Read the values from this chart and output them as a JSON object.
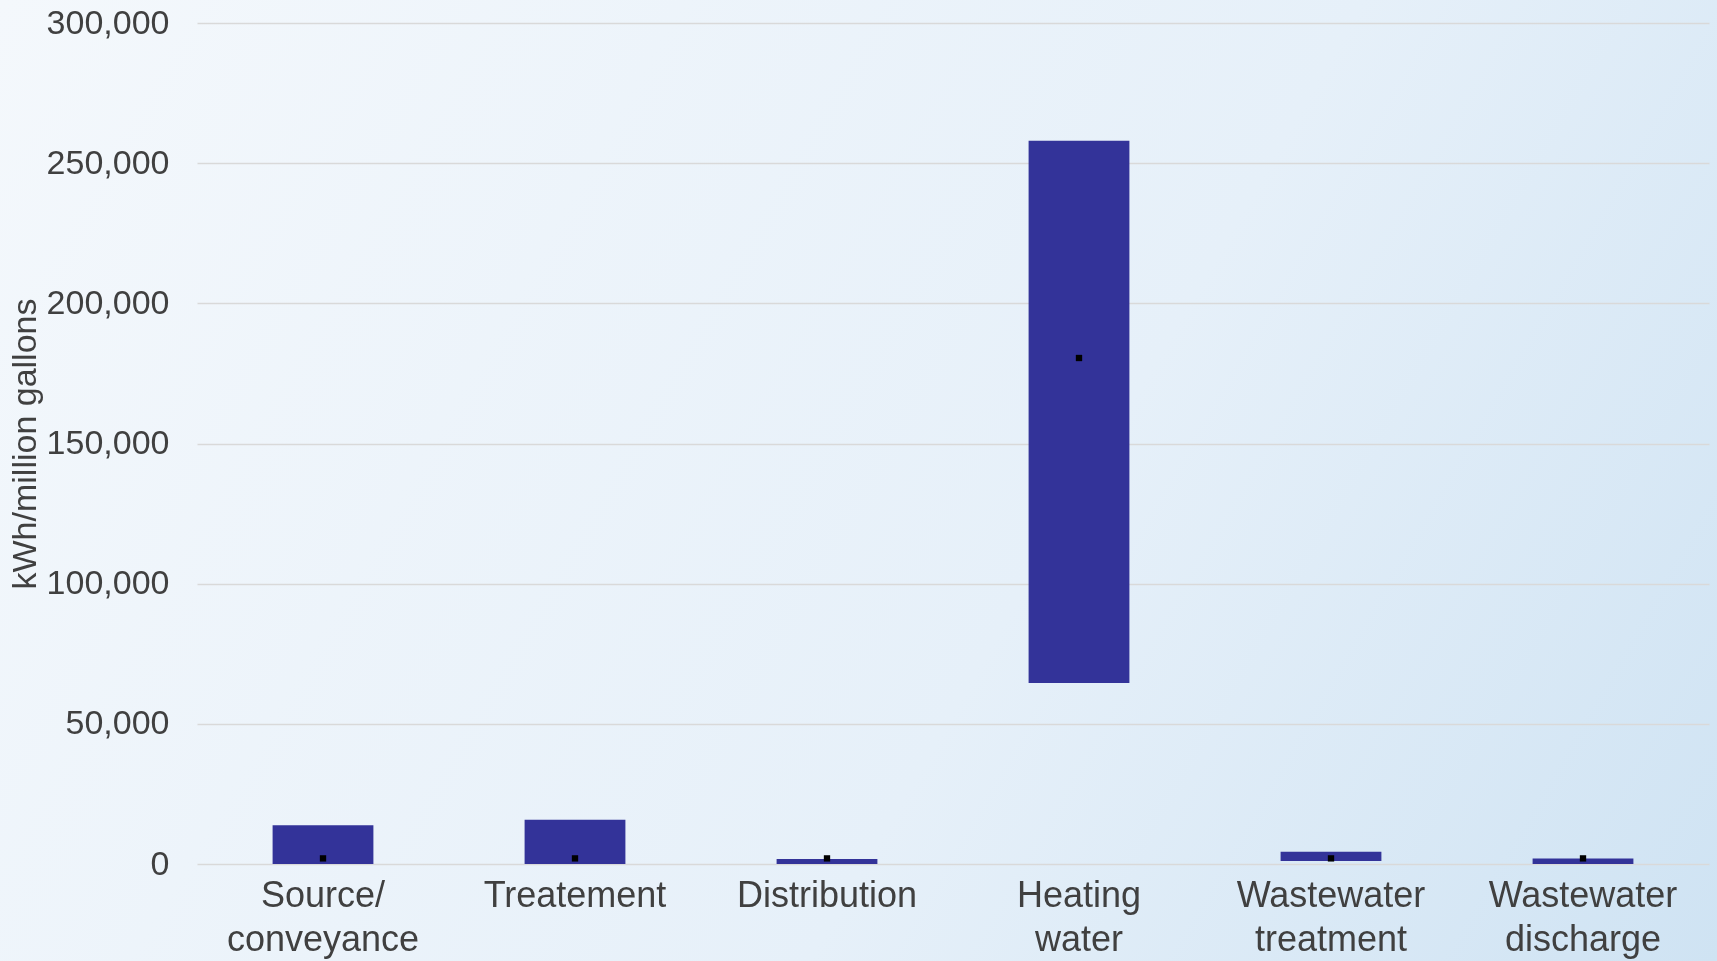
{
  "chart_data": {
    "type": "bar",
    "ylabel": "kWh/million gallons",
    "categories": [
      "Source/ conveyance",
      "Treatement",
      "Distribution",
      "Heating water",
      "Wastewater treatment",
      "Wastewater discharge"
    ],
    "series": [
      {
        "color": "#333399",
        "base": [
          0,
          0,
          0,
          64600,
          1100,
          0
        ],
        "values": [
          13800,
          15800,
          1800,
          193400,
          3300,
          2000
        ]
      },
      {
        "type": "scatter",
        "color": "#000000",
        "x": [
          "Source/ conveyance",
          "Treatement",
          "Distribution",
          "Heating water",
          "Wastewater treatment",
          "Wastewater discharge"
        ],
        "values": [
          2000,
          2000,
          2000,
          180500,
          2000,
          2000
        ]
      }
    ],
    "ylim": [
      0,
      300000
    ],
    "yticks": [
      0,
      {
        "value": 50000,
        "label": "50,000"
      },
      {
        "value": 100000,
        "label": "100,000"
      },
      {
        "value": 150000,
        "label": "150,000"
      },
      {
        "value": 200000,
        "label": "200,000"
      },
      {
        "value": 250000,
        "label": "250,000"
      },
      {
        "value": 300000,
        "label": "300,000"
      }
    ],
    "grid": "y",
    "marker": "square"
  }
}
